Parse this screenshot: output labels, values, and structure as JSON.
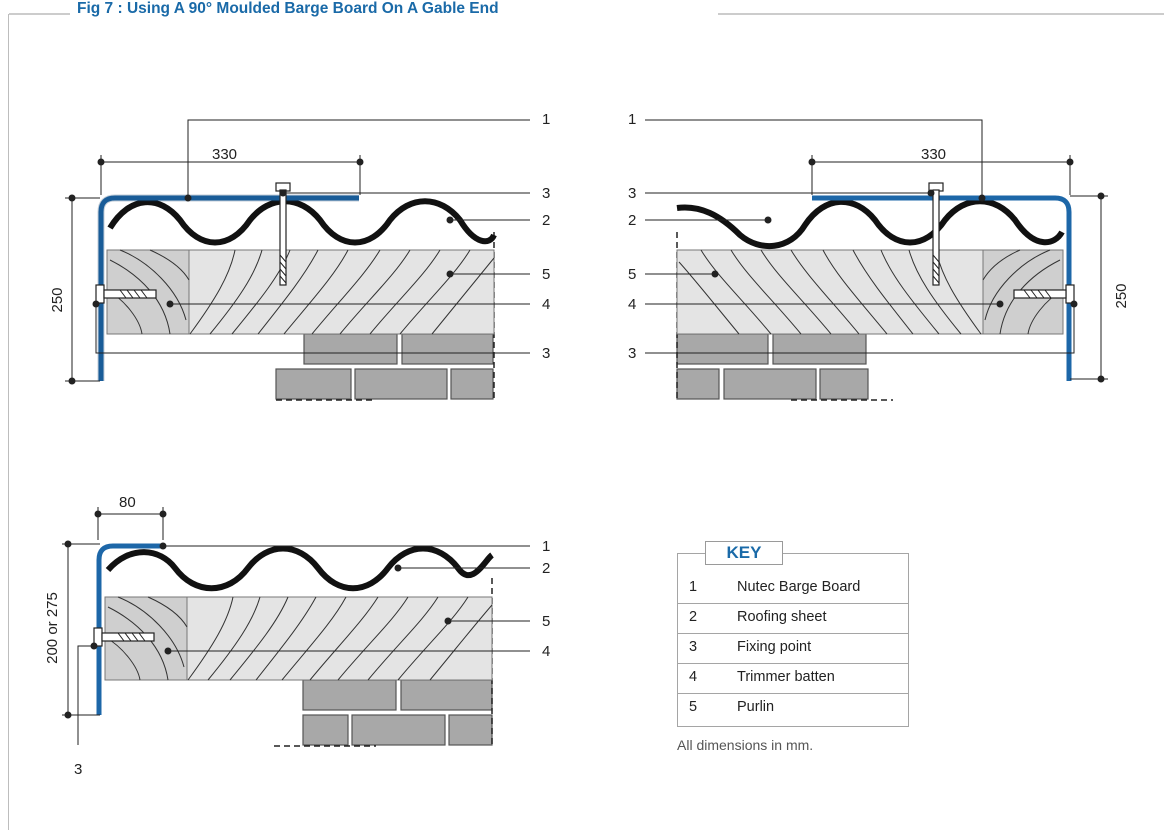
{
  "title": "Fig 7 :  Using A 90° Moulded Barge Board On A Gable End",
  "colors": {
    "accent": "#1a6aa8",
    "barge_board": "#1d67a8",
    "timber": "#e0e0e0",
    "brick": "#a6a6a6"
  },
  "diagrams": {
    "left": {
      "dim_width": "330",
      "dim_height": "250",
      "callouts": [
        "1",
        "3",
        "2",
        "5",
        "4",
        "3"
      ]
    },
    "right": {
      "dim_width": "330",
      "dim_height": "250",
      "callouts": [
        "1",
        "3",
        "2",
        "5",
        "4",
        "3"
      ]
    },
    "bottom": {
      "dim_width": "80",
      "dim_height": "200 or 275",
      "callouts": [
        "1",
        "2",
        "5",
        "4",
        "3"
      ]
    }
  },
  "key": {
    "title": "KEY",
    "items": [
      {
        "num": "1",
        "label": "Nutec Barge Board"
      },
      {
        "num": "2",
        "label": "Roofing sheet"
      },
      {
        "num": "3",
        "label": "Fixing point"
      },
      {
        "num": "4",
        "label": "Trimmer batten"
      },
      {
        "num": "5",
        "label": "Purlin"
      }
    ],
    "note": "All dimensions in mm."
  }
}
